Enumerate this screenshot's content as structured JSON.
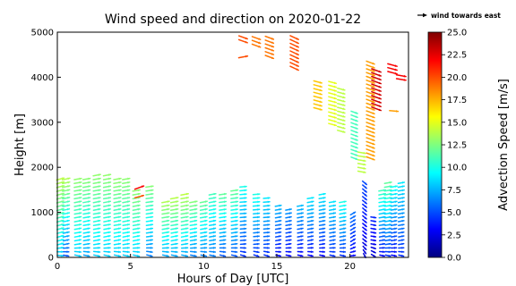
{
  "chart_data": {
    "type": "quiver",
    "title": "Wind speed and direction on 2020-01-22",
    "xlabel": "Hours of Day [UTC]",
    "ylabel": "Height [m]",
    "xlim": [
      0,
      24
    ],
    "ylim": [
      0,
      5000
    ],
    "xticks": [
      0,
      5,
      10,
      15,
      20
    ],
    "yticks": [
      0,
      1000,
      2000,
      3000,
      4000,
      5000
    ],
    "legend": {
      "label": "wind towards east",
      "position": "top-right"
    },
    "colorbar": {
      "label": "Advection Speed [m/s]",
      "range": [
        0,
        25
      ],
      "ticks": [
        "0.0",
        "2.5",
        "5.0",
        "7.5",
        "10.0",
        "12.5",
        "15.0",
        "17.5",
        "20.0",
        "22.5",
        "25.0"
      ],
      "colormap": [
        "#00007f",
        "#0000ff",
        "#007fff",
        "#00ffff",
        "#7fff7f",
        "#ffff00",
        "#ff7f00",
        "#ff0000",
        "#7f0000"
      ]
    },
    "profiles": [
      {
        "hour": 0.2,
        "top": 1750,
        "bottom_speed": 8,
        "top_speed": 14,
        "direction_deg": 75
      },
      {
        "hour": 0.6,
        "top": 1800,
        "bottom_speed": 5,
        "top_speed": 14,
        "direction_deg": 78
      },
      {
        "hour": 1.4,
        "top": 1750,
        "bottom_speed": 8,
        "top_speed": 13,
        "direction_deg": 80
      },
      {
        "hour": 2.0,
        "top": 1800,
        "bottom_speed": 7,
        "top_speed": 13,
        "direction_deg": 80
      },
      {
        "hour": 2.7,
        "top": 1850,
        "bottom_speed": 8,
        "top_speed": 13,
        "direction_deg": 80
      },
      {
        "hour": 3.4,
        "top": 1850,
        "bottom_speed": 8,
        "top_speed": 13,
        "direction_deg": 80
      },
      {
        "hour": 4.1,
        "top": 1750,
        "bottom_speed": 8,
        "top_speed": 13,
        "direction_deg": 80
      },
      {
        "hour": 4.7,
        "top": 1800,
        "bottom_speed": 8,
        "top_speed": 13,
        "direction_deg": 80
      },
      {
        "hour": 5.4,
        "top": 1500,
        "bottom_speed": 8,
        "top_speed": 13,
        "direction_deg": 80
      },
      {
        "hour": 6.3,
        "top": 1650,
        "bottom_speed": 6,
        "top_speed": 13,
        "direction_deg": 82
      },
      {
        "hour": 7.4,
        "top": 1300,
        "bottom_speed": 7,
        "top_speed": 14,
        "direction_deg": 80
      },
      {
        "hour": 8.0,
        "top": 1350,
        "bottom_speed": 7,
        "top_speed": 14,
        "direction_deg": 80
      },
      {
        "hour": 8.7,
        "top": 1400,
        "bottom_speed": 7,
        "top_speed": 14,
        "direction_deg": 80
      },
      {
        "hour": 9.3,
        "top": 1300,
        "bottom_speed": 6,
        "top_speed": 13,
        "direction_deg": 80
      },
      {
        "hour": 10.0,
        "top": 1250,
        "bottom_speed": 6,
        "top_speed": 12,
        "direction_deg": 80
      },
      {
        "hour": 10.6,
        "top": 1400,
        "bottom_speed": 6,
        "top_speed": 11,
        "direction_deg": 80
      },
      {
        "hour": 11.3,
        "top": 1450,
        "bottom_speed": 5,
        "top_speed": 12,
        "direction_deg": 82
      },
      {
        "hour": 12.1,
        "top": 1500,
        "bottom_speed": 5,
        "top_speed": 12,
        "direction_deg": 82
      },
      {
        "hour": 12.7,
        "top": 1600,
        "bottom_speed": 4,
        "top_speed": 10,
        "direction_deg": 85
      },
      {
        "hour": 13.6,
        "top": 1400,
        "bottom_speed": 4,
        "top_speed": 10,
        "direction_deg": 85
      },
      {
        "hour": 14.3,
        "top": 1350,
        "bottom_speed": 4,
        "top_speed": 9,
        "direction_deg": 85
      },
      {
        "hour": 15.1,
        "top": 1200,
        "bottom_speed": 3,
        "top_speed": 8,
        "direction_deg": 80
      },
      {
        "hour": 15.8,
        "top": 1100,
        "bottom_speed": 3,
        "top_speed": 7,
        "direction_deg": 80
      },
      {
        "hour": 16.6,
        "top": 1200,
        "bottom_speed": 3,
        "top_speed": 8,
        "direction_deg": 80
      },
      {
        "hour": 17.3,
        "top": 1350,
        "bottom_speed": 3,
        "top_speed": 9,
        "direction_deg": 80
      },
      {
        "hour": 18.1,
        "top": 1400,
        "bottom_speed": 3,
        "top_speed": 9,
        "direction_deg": 80
      },
      {
        "hour": 18.8,
        "top": 1300,
        "bottom_speed": 4,
        "top_speed": 9,
        "direction_deg": 80
      },
      {
        "hour": 19.5,
        "top": 1250,
        "bottom_speed": 4,
        "top_speed": 10,
        "direction_deg": 80
      },
      {
        "hour": 20.2,
        "top": 1000,
        "bottom_speed": 3,
        "top_speed": 6,
        "direction_deg": 60
      },
      {
        "hour": 21.0,
        "top": 1700,
        "bottom_speed": 2,
        "top_speed": 5,
        "direction_deg": 130
      },
      {
        "hour": 21.6,
        "top": 900,
        "bottom_speed": 2,
        "top_speed": 4,
        "direction_deg": 100
      },
      {
        "hour": 22.2,
        "top": 1500,
        "bottom_speed": 3,
        "top_speed": 11,
        "direction_deg": 80
      },
      {
        "hour": 22.6,
        "top": 1700,
        "bottom_speed": 4,
        "top_speed": 12,
        "direction_deg": 80
      },
      {
        "hour": 23.0,
        "top": 1650,
        "bottom_speed": 3,
        "top_speed": 10,
        "direction_deg": 80
      },
      {
        "hour": 23.5,
        "top": 1700,
        "bottom_speed": 4,
        "top_speed": 9,
        "direction_deg": 80
      }
    ],
    "upper_layers": [
      {
        "hour": 12.7,
        "bottom": 4800,
        "top": 4950,
        "speed": 20,
        "direction_deg": 110
      },
      {
        "hour": 12.7,
        "bottom": 4450,
        "top": 4500,
        "speed": 20,
        "direction_deg": 80
      },
      {
        "hour": 13.6,
        "bottom": 4700,
        "top": 4900,
        "speed": 19,
        "direction_deg": 110
      },
      {
        "hour": 14.5,
        "bottom": 4450,
        "top": 4950,
        "speed": 19,
        "direction_deg": 110
      },
      {
        "hour": 16.2,
        "bottom": 4200,
        "top": 4900,
        "speed": 20,
        "direction_deg": 115
      },
      {
        "hour": 17.8,
        "bottom": 3300,
        "top": 3900,
        "speed": 17,
        "direction_deg": 105
      },
      {
        "hour": 18.8,
        "bottom": 2950,
        "top": 3950,
        "speed": 15,
        "direction_deg": 105
      },
      {
        "hour": 19.4,
        "bottom": 2800,
        "top": 3800,
        "speed": 14,
        "direction_deg": 105
      },
      {
        "hour": 20.3,
        "bottom": 2200,
        "top": 3250,
        "speed": 11,
        "direction_deg": 110
      },
      {
        "hour": 20.8,
        "bottom": 1900,
        "top": 2350,
        "speed": 14,
        "direction_deg": 100
      },
      {
        "hour": 21.4,
        "bottom": 2200,
        "top": 4350,
        "speed": 18,
        "direction_deg": 110
      },
      {
        "hour": 21.8,
        "bottom": 3300,
        "top": 4200,
        "speed": 23,
        "direction_deg": 110
      },
      {
        "hour": 22.9,
        "bottom": 4100,
        "top": 4300,
        "speed": 22,
        "direction_deg": 105
      },
      {
        "hour": 23.5,
        "bottom": 3950,
        "top": 4050,
        "speed": 22,
        "direction_deg": 100
      },
      {
        "hour": 23.0,
        "bottom": 3250,
        "top": 3250,
        "speed": 18,
        "direction_deg": 95
      },
      {
        "hour": 5.6,
        "bottom": 1550,
        "top": 1600,
        "speed": 22,
        "direction_deg": 70
      },
      {
        "hour": 5.6,
        "bottom": 1350,
        "top": 1400,
        "speed": 20,
        "direction_deg": 75
      }
    ]
  }
}
